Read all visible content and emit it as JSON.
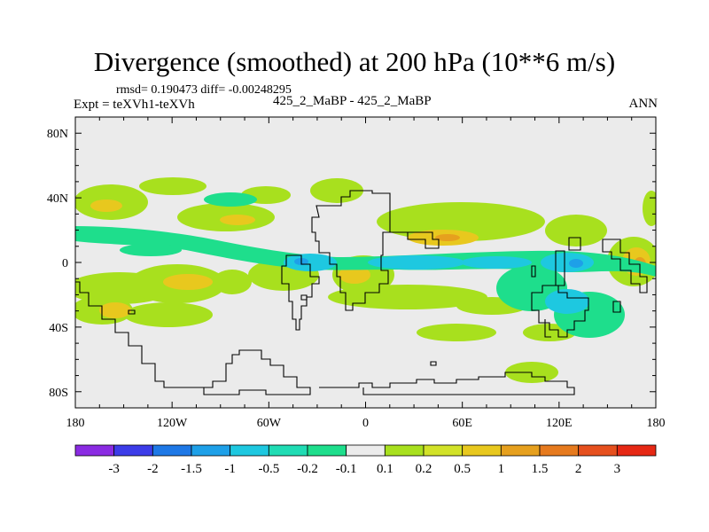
{
  "title": "Divergence (smoothed) at 200 hPa (10**6 m/s)",
  "stats": "rmsd= 0.190473 diff= -0.00248295",
  "experiment": "Expt = teXVh1-teXVh",
  "case": "425_2_MaBP - 425_2_MaBP",
  "season": "ANN",
  "axes": {
    "x_labels": [
      "180",
      "120W",
      "60W",
      "0",
      "60E",
      "120E",
      "180"
    ],
    "y_labels": [
      "80N",
      "40N",
      "0",
      "40S",
      "80S"
    ],
    "xlim": [
      -180,
      180
    ],
    "ylim": [
      -90,
      90
    ]
  },
  "colorbar": {
    "labels": [
      "-3",
      "-2",
      "-1.5",
      "-1",
      "-0.5",
      "-0.2",
      "-0.1",
      "0.1",
      "0.2",
      "0.5",
      "1",
      "1.5",
      "2",
      "3"
    ],
    "colors": [
      "#8a2be2",
      "#3c3ce8",
      "#1e78e6",
      "#1ea0e8",
      "#1ec8e0",
      "#20dcb4",
      "#1ede8c",
      "#ececec",
      "#a8e01e",
      "#d2e228",
      "#e8c81e",
      "#e6a01e",
      "#e67a1e",
      "#e6501e",
      "#e62814"
    ]
  },
  "colors": {
    "background_field": "#ebebeb",
    "coast": "#000000"
  }
}
